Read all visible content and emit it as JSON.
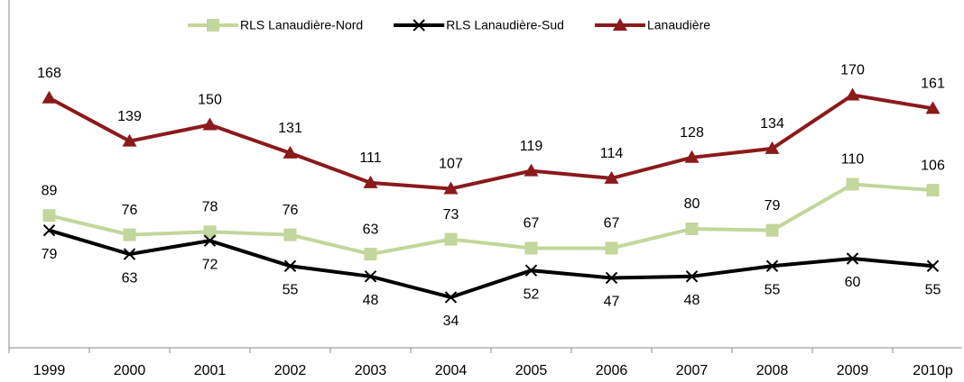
{
  "chart_data": {
    "type": "line",
    "categories": [
      "1999",
      "2000",
      "2001",
      "2002",
      "2003",
      "2004",
      "2005",
      "2006",
      "2007",
      "2008",
      "2009",
      "2010p"
    ],
    "series": [
      {
        "name": "RLS Lanaudière-Nord",
        "color": "#c3d69b",
        "marker": "square",
        "label_position": "above",
        "values": [
          89,
          76,
          78,
          76,
          63,
          73,
          67,
          67,
          80,
          79,
          110,
          106
        ]
      },
      {
        "name": "RLS Lanaudière-Sud",
        "color": "#000000",
        "marker": "x",
        "label_position": "below",
        "values": [
          79,
          63,
          72,
          55,
          48,
          34,
          52,
          47,
          48,
          55,
          60,
          55
        ]
      },
      {
        "name": "Lanaudière",
        "color": "#8b1a1a",
        "marker": "triangle",
        "label_position": "above",
        "values": [
          168,
          139,
          150,
          131,
          111,
          107,
          119,
          114,
          128,
          134,
          170,
          161
        ]
      }
    ],
    "ylim": [
      0,
      200
    ],
    "legend": "top"
  }
}
